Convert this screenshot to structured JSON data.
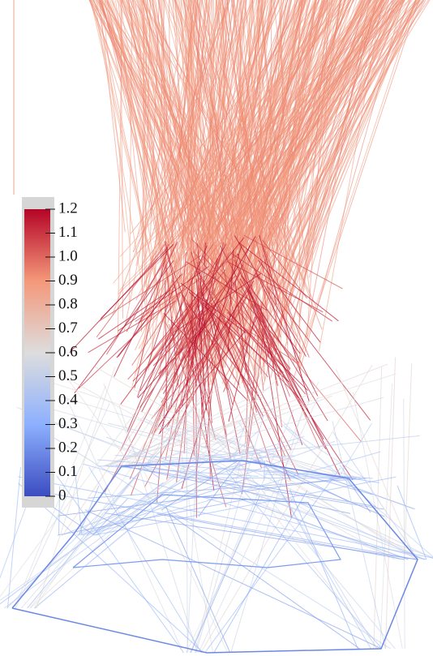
{
  "colorbar": {
    "range": [
      0,
      1.2
    ],
    "ticks": [
      0,
      0.1,
      0.2,
      0.3,
      0.4,
      0.5,
      0.6,
      0.7,
      0.8,
      0.9,
      {
        "value": 1,
        "label": "1.0"
      },
      1.1,
      1.2
    ],
    "colors": [
      "#3b4cc0",
      "#8db0fe",
      "#dddddd",
      "#f4987a",
      "#b40426"
    ]
  }
}
